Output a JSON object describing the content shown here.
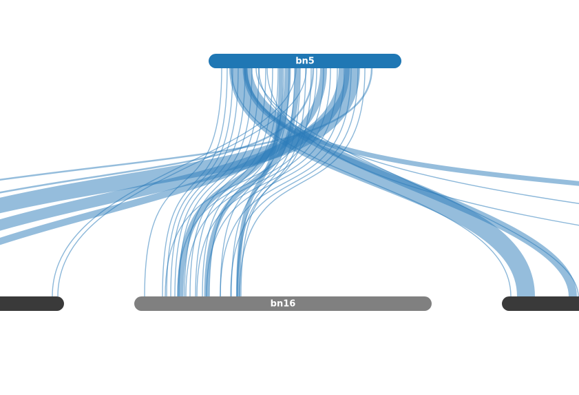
{
  "chromosomes": [
    {
      "id": "top",
      "label": "bn5",
      "color": "#1f77b4"
    },
    {
      "id": "bottom-left",
      "label": "",
      "color": "#3a3a3a"
    },
    {
      "id": "bottom-center",
      "label": "bn16",
      "color": "#808080"
    },
    {
      "id": "bottom-right",
      "label": "",
      "color": "#3a3a3a"
    }
  ],
  "link_color": "#2b7bba"
}
